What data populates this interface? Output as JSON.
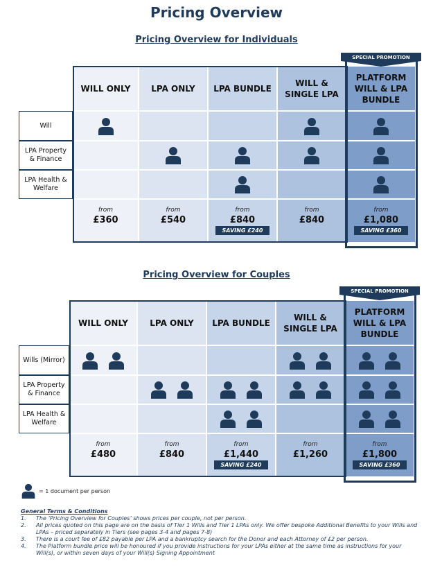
{
  "title": "Pricing Overview",
  "sections": [
    {
      "heading": "Pricing Overview for Individuals",
      "promotion": "SPECIAL PROMOTION",
      "columns": [
        "WILL ONLY",
        "LPA ONLY",
        "LPA BUNDLE",
        "WILL & SINGLE LPA",
        "PLATFORM WILL & LPA BUNDLE"
      ],
      "rows": [
        {
          "label": "Will",
          "icons": [
            1,
            0,
            0,
            1,
            1
          ]
        },
        {
          "label": "LPA Property & Finance",
          "icons": [
            0,
            1,
            1,
            1,
            1
          ]
        },
        {
          "label": "LPA Health & Welfare",
          "icons": [
            0,
            0,
            1,
            0,
            1
          ]
        }
      ],
      "prices": [
        {
          "from": "from",
          "price": "£360"
        },
        {
          "from": "from",
          "price": "£540"
        },
        {
          "from": "from",
          "price": "£840",
          "saving": "SAVING £240"
        },
        {
          "from": "from",
          "price": "£840"
        },
        {
          "from": "from",
          "price": "£1,080",
          "saving": "SAVING £360"
        }
      ]
    },
    {
      "heading": "Pricing Overview for Couples",
      "promotion": "SPECIAL PROMOTION",
      "columns": [
        "WILL ONLY",
        "LPA ONLY",
        "LPA BUNDLE",
        "WILL & SINGLE LPA",
        "PLATFORM WILL & LPA BUNDLE"
      ],
      "rows": [
        {
          "label": "Wills (Mirror)",
          "icons": [
            2,
            0,
            0,
            2,
            2
          ]
        },
        {
          "label": "LPA Property & Finance",
          "icons": [
            0,
            2,
            2,
            2,
            2
          ]
        },
        {
          "label": "LPA Health & Welfare",
          "icons": [
            0,
            0,
            2,
            0,
            2
          ]
        }
      ],
      "prices": [
        {
          "from": "from",
          "price": "£480"
        },
        {
          "from": "from",
          "price": "£840"
        },
        {
          "from": "from",
          "price": "£1,440",
          "saving": "SAVING £240"
        },
        {
          "from": "from",
          "price": "£1,260"
        },
        {
          "from": "from",
          "price": "£1,800",
          "saving": "SAVING £360"
        }
      ]
    }
  ],
  "legend": "= 1 document per person",
  "terms": {
    "heading": "General Terms & Conditions",
    "items": [
      {
        "number": "1.",
        "text": "The ‘Pricing Overview for Couples’ shows prices per couple, not per person."
      },
      {
        "number": "2.",
        "text": "All prices quoted on this page are on the basis of Tier 1 Wills and Tier 1 LPAs only.  We offer bespoke Additional Benefits to your Wills and LPAs – priced separately in Tiers (see pages 3-4 and pages 7-8)"
      },
      {
        "number": "3.",
        "text": "There is a court fee of £82 payable per LPA and a bankruptcy search for the Donor and each Attorney of £2 per person."
      },
      {
        "number": "4.",
        "text": "The Platform bundle price will be honoured if you provide instructions for your LPAs either at the same time as instructions for your Will(s), or within seven days of your Will(s) Signing Appointment"
      }
    ]
  }
}
